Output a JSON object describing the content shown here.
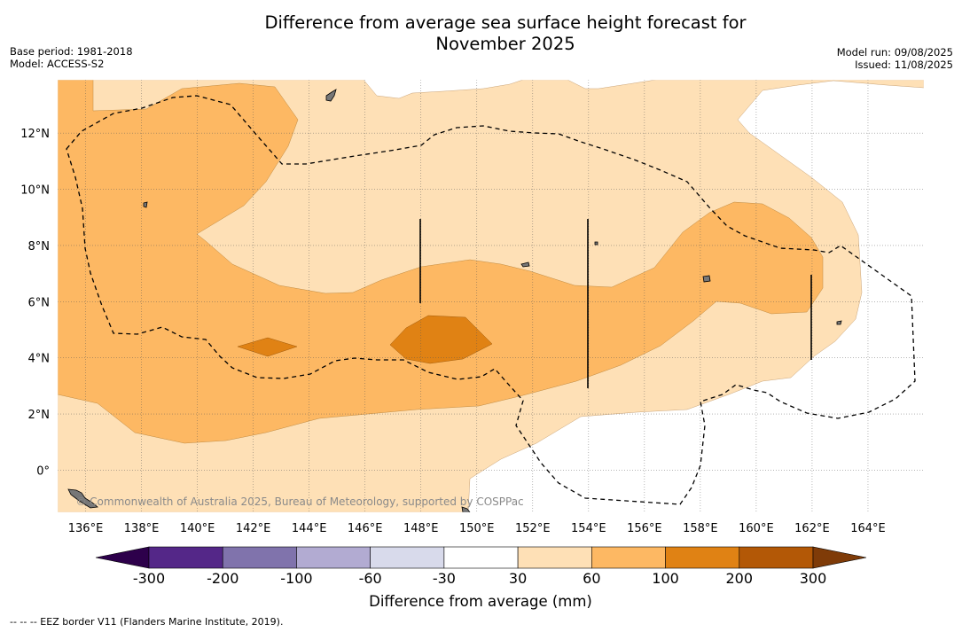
{
  "header": {
    "title_line1": "Difference from average sea surface height forecast for",
    "title_line2": "November 2025",
    "base_period": "Base period: 1981-2018",
    "model": "Model: ACCESS-S2",
    "model_run": "Model run: 09/08/2025",
    "issued": "Issued: 11/08/2025"
  },
  "map": {
    "lon_range": [
      135,
      166
    ],
    "lat_range": [
      -1.5,
      13.9
    ],
    "lon_ticks": [
      "136°E",
      "138°E",
      "140°E",
      "142°E",
      "144°E",
      "146°E",
      "148°E",
      "150°E",
      "152°E",
      "154°E",
      "156°E",
      "158°E",
      "160°E",
      "162°E",
      "164°E"
    ],
    "lat_ticks": [
      "0°",
      "2°N",
      "4°N",
      "6°N",
      "8°N",
      "10°N",
      "12°N"
    ],
    "gridlines": true,
    "watermark": "© Commonwealth of Australia 2025, Bureau of Meteorology, supported by COSPPac"
  },
  "colorbar": {
    "title": "Difference from average (mm)",
    "ticks": [
      "-300",
      "-200",
      "-100",
      "-60",
      "-30",
      "30",
      "60",
      "100",
      "200",
      "300"
    ],
    "colors": [
      "#542788",
      "#8073ac",
      "#b2abd2",
      "#d8daeb",
      "#ffffff",
      "#fee0b6",
      "#fdb863",
      "#e08214",
      "#b35806"
    ],
    "extend_low": "#2d004b",
    "extend_high": "#7f3b08"
  },
  "footnote": "--  --  -- EEZ border V11 (Flanders Marine Institute, 2019)."
}
